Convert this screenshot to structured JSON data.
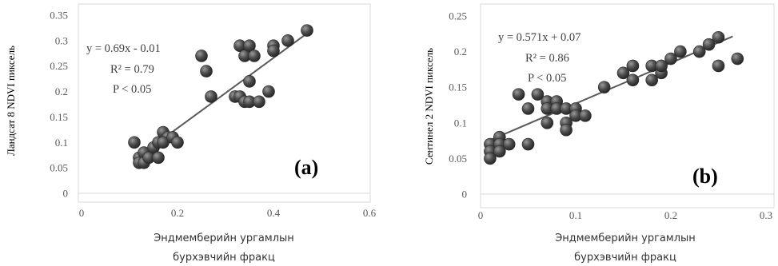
{
  "chart_data": [
    {
      "type": "scatter",
      "panel_label": "(a)",
      "xlabel": [
        "Эндмемберийн ургамлын",
        "бурхэвчийн фракц"
      ],
      "ylabel": "Ландсат 8 NDVI пиксель",
      "xlim": [
        0,
        0.6
      ],
      "ylim": [
        0,
        0.35
      ],
      "xticks": [
        "0",
        "0.2",
        "0.4",
        "0.6"
      ],
      "yticks": [
        "0",
        "0.05",
        "0.1",
        "0.15",
        "0.2",
        "0.25",
        "0.3",
        "0.35"
      ],
      "annotation": [
        "y = 0.69x - 0.01",
        "R² = 0.79",
        "P < 0.05"
      ],
      "trendline": {
        "slope": 0.69,
        "intercept": -0.01,
        "x_range": [
          0.12,
          0.47
        ]
      },
      "grid": false,
      "marker_color": "#3f3f3f",
      "points": [
        [
          0.11,
          0.1
        ],
        [
          0.12,
          0.07
        ],
        [
          0.12,
          0.06
        ],
        [
          0.13,
          0.08
        ],
        [
          0.13,
          0.06
        ],
        [
          0.14,
          0.07
        ],
        [
          0.15,
          0.09
        ],
        [
          0.16,
          0.07
        ],
        [
          0.16,
          0.1
        ],
        [
          0.17,
          0.12
        ],
        [
          0.18,
          0.11
        ],
        [
          0.17,
          0.1
        ],
        [
          0.19,
          0.11
        ],
        [
          0.2,
          0.1
        ],
        [
          0.25,
          0.27
        ],
        [
          0.26,
          0.24
        ],
        [
          0.27,
          0.19
        ],
        [
          0.32,
          0.19
        ],
        [
          0.33,
          0.29
        ],
        [
          0.33,
          0.19
        ],
        [
          0.34,
          0.27
        ],
        [
          0.34,
          0.18
        ],
        [
          0.35,
          0.29
        ],
        [
          0.35,
          0.22
        ],
        [
          0.35,
          0.18
        ],
        [
          0.36,
          0.27
        ],
        [
          0.37,
          0.18
        ],
        [
          0.39,
          0.2
        ],
        [
          0.4,
          0.29
        ],
        [
          0.4,
          0.28
        ],
        [
          0.43,
          0.3
        ],
        [
          0.47,
          0.32
        ]
      ]
    },
    {
      "type": "scatter",
      "panel_label": "(b)",
      "xlabel": [
        "Эндмемберийн ургамлын",
        "бурхэвчийн фракц"
      ],
      "ylabel": "Сентинел 2 NDVI пиксель",
      "xlim": [
        0,
        0.3
      ],
      "ylim": [
        0,
        0.25
      ],
      "xticks": [
        "0",
        "0.1",
        "0.2",
        "0.3"
      ],
      "yticks": [
        "0",
        "0.05",
        "0.1",
        "0.15",
        "0.2",
        "0.25"
      ],
      "annotation": [
        "y = 0.571x + 0.07",
        "R² = 0.86",
        "P < 0.05"
      ],
      "trendline": {
        "slope": 0.571,
        "intercept": 0.07,
        "x_range": [
          0.01,
          0.265
        ]
      },
      "grid": false,
      "marker_color": "#3f3f3f",
      "points": [
        [
          0.01,
          0.07
        ],
        [
          0.01,
          0.06
        ],
        [
          0.01,
          0.05
        ],
        [
          0.02,
          0.08
        ],
        [
          0.02,
          0.07
        ],
        [
          0.02,
          0.06
        ],
        [
          0.03,
          0.07
        ],
        [
          0.04,
          0.14
        ],
        [
          0.05,
          0.12
        ],
        [
          0.05,
          0.07
        ],
        [
          0.06,
          0.14
        ],
        [
          0.07,
          0.13
        ],
        [
          0.07,
          0.12
        ],
        [
          0.07,
          0.1
        ],
        [
          0.08,
          0.13
        ],
        [
          0.08,
          0.12
        ],
        [
          0.09,
          0.12
        ],
        [
          0.09,
          0.1
        ],
        [
          0.09,
          0.09
        ],
        [
          0.1,
          0.12
        ],
        [
          0.1,
          0.11
        ],
        [
          0.11,
          0.11
        ],
        [
          0.13,
          0.15
        ],
        [
          0.15,
          0.17
        ],
        [
          0.16,
          0.18
        ],
        [
          0.16,
          0.16
        ],
        [
          0.18,
          0.18
        ],
        [
          0.18,
          0.16
        ],
        [
          0.19,
          0.17
        ],
        [
          0.19,
          0.18
        ],
        [
          0.2,
          0.19
        ],
        [
          0.21,
          0.2
        ],
        [
          0.23,
          0.2
        ],
        [
          0.24,
          0.21
        ],
        [
          0.25,
          0.22
        ],
        [
          0.25,
          0.18
        ],
        [
          0.27,
          0.19
        ]
      ]
    }
  ]
}
